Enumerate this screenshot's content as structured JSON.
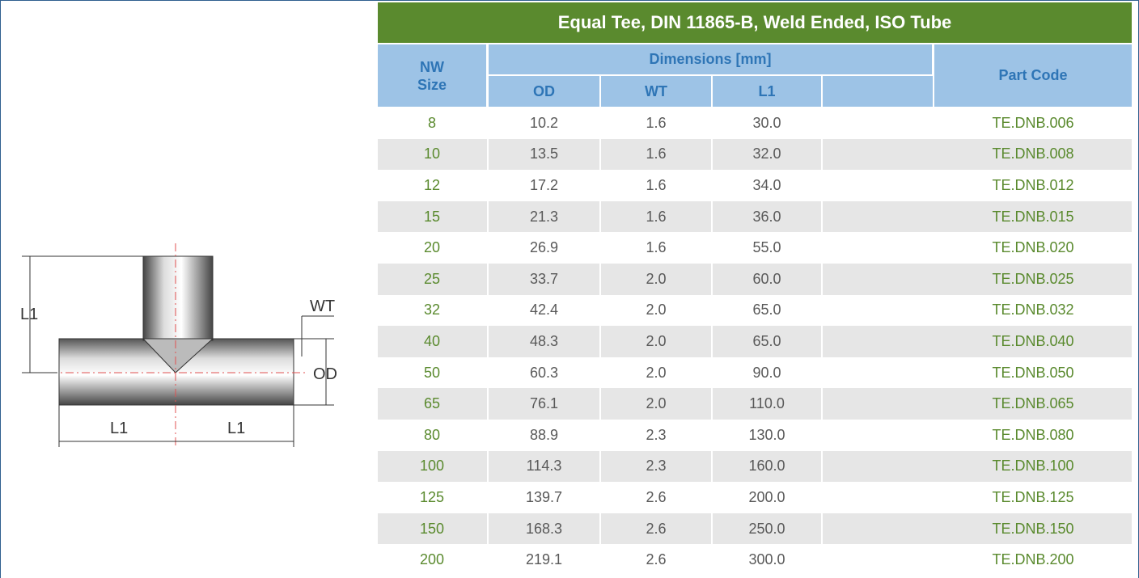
{
  "title": "Equal Tee, DIN 11865-B, Weld Ended, ISO Tube",
  "header": {
    "nw_size": [
      "NW",
      "Size"
    ],
    "dimensions": "Dimensions [mm]",
    "part_code": "Part Code",
    "od": "OD",
    "wt": "WT",
    "l1": "L1"
  },
  "diagram": {
    "labels": [
      "L1",
      "WT",
      "OD",
      "L1",
      "L1"
    ]
  },
  "table": {
    "rows": [
      [
        "8",
        "10.2",
        "1.6",
        "30.0",
        "TE.DNB.006"
      ],
      [
        "10",
        "13.5",
        "1.6",
        "32.0",
        "TE.DNB.008"
      ],
      [
        "12",
        "17.2",
        "1.6",
        "34.0",
        "TE.DNB.012"
      ],
      [
        "15",
        "21.3",
        "1.6",
        "36.0",
        "TE.DNB.015"
      ],
      [
        "20",
        "26.9",
        "1.6",
        "55.0",
        "TE.DNB.020"
      ],
      [
        "25",
        "33.7",
        "2.0",
        "60.0",
        "TE.DNB.025"
      ],
      [
        "32",
        "42.4",
        "2.0",
        "65.0",
        "TE.DNB.032"
      ],
      [
        "40",
        "48.3",
        "2.0",
        "65.0",
        "TE.DNB.040"
      ],
      [
        "50",
        "60.3",
        "2.0",
        "90.0",
        "TE.DNB.050"
      ],
      [
        "65",
        "76.1",
        "2.0",
        "110.0",
        "TE.DNB.065"
      ],
      [
        "80",
        "88.9",
        "2.3",
        "130.0",
        "TE.DNB.080"
      ],
      [
        "100",
        "114.3",
        "2.3",
        "160.0",
        "TE.DNB.100"
      ],
      [
        "125",
        "139.7",
        "2.6",
        "200.0",
        "TE.DNB.125"
      ],
      [
        "150",
        "168.3",
        "2.6",
        "250.0",
        "TE.DNB.150"
      ],
      [
        "200",
        "219.1",
        "2.6",
        "300.0",
        "TE.DNB.200"
      ]
    ]
  }
}
